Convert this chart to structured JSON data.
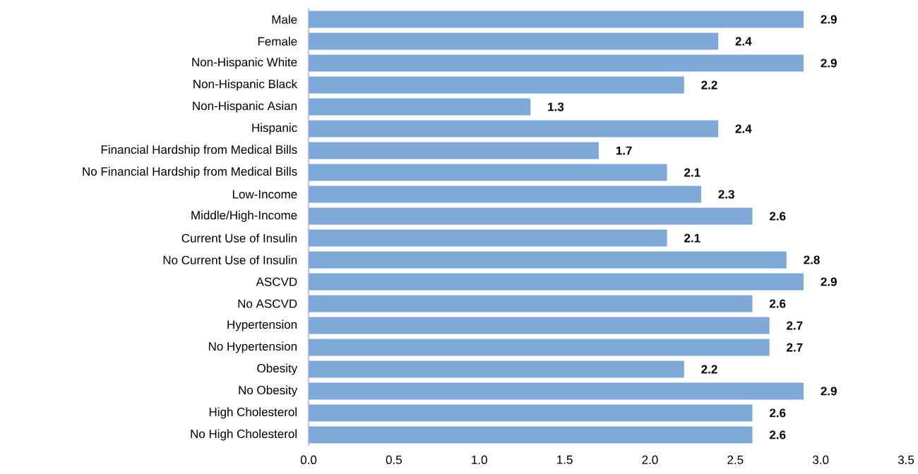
{
  "chart_data": {
    "type": "bar",
    "orientation": "horizontal",
    "categories": [
      "Male",
      "Female",
      "Non-Hispanic White",
      "Non-Hispanic Black",
      "Non-Hispanic Asian",
      "Hispanic",
      "Financial Hardship from Medical Bills",
      "No Financial Hardship from Medical Bills",
      "Low-Income",
      "Middle/High-Income",
      "Current Use of Insulin",
      "No Current Use of Insulin",
      "ASCVD",
      "No ASCVD",
      "Hypertension",
      "No Hypertension",
      "Obesity",
      "No Obesity",
      "High Cholesterol",
      "No High Cholesterol"
    ],
    "values": [
      2.9,
      2.4,
      2.9,
      2.2,
      1.3,
      2.4,
      1.7,
      2.1,
      2.3,
      2.6,
      2.1,
      2.8,
      2.9,
      2.6,
      2.7,
      2.7,
      2.2,
      2.9,
      2.6,
      2.6
    ],
    "color": "#7eaad9",
    "xlim": [
      0,
      3.5
    ],
    "xticks": [
      {
        "value": 0,
        "label": "0.0"
      },
      {
        "value": 0.5,
        "label": "0.5"
      },
      {
        "value": 1,
        "label": "1.0"
      },
      {
        "value": 1.5,
        "label": "1.5"
      },
      {
        "value": 2,
        "label": "2.0"
      },
      {
        "value": 2.5,
        "label": "2.5"
      },
      {
        "value": 3,
        "label": "3.0"
      },
      {
        "value": 3.5,
        "label": "3.5"
      }
    ],
    "data_labels": true
  }
}
